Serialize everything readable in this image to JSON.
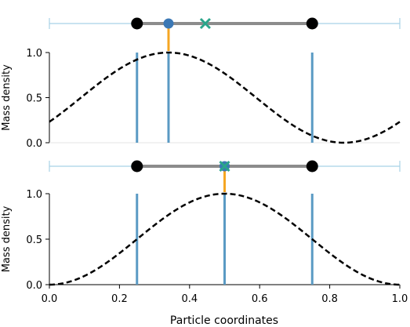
{
  "chart_data": [
    {
      "type": "line",
      "panel": "top",
      "xlim": [
        0.0,
        1.0
      ],
      "ylim": [
        0.0,
        1.0
      ],
      "ylabel": "Mass density",
      "yticks": [
        "0.0",
        "0.5",
        "1.0"
      ],
      "show_xticks": false,
      "curve": {
        "kind": "shifted-cosine",
        "center": 0.34,
        "period": 1.0,
        "style": "dashed",
        "color": "#000000"
      },
      "vertical_lines": [
        0.25,
        0.34,
        0.75
      ],
      "vline_color": "#5a9ac4",
      "strip": {
        "range": [
          0.0,
          1.0
        ],
        "segment": [
          0.25,
          0.75
        ],
        "endpoints": [
          0.25,
          0.75
        ],
        "orange_marker": 0.34,
        "blue_marker": 0.34,
        "green_marker": 0.445
      }
    },
    {
      "type": "line",
      "panel": "bottom",
      "xlim": [
        0.0,
        1.0
      ],
      "ylim": [
        0.0,
        1.0
      ],
      "ylabel": "Mass density",
      "xlabel": "Particle coordinates",
      "xticks": [
        "0.0",
        "0.2",
        "0.4",
        "0.6",
        "0.8",
        "1.0"
      ],
      "yticks": [
        "0.0",
        "0.5",
        "1.0"
      ],
      "curve": {
        "kind": "shifted-cosine",
        "center": 0.5,
        "period": 1.0,
        "style": "dashed",
        "color": "#000000"
      },
      "vertical_lines": [
        0.25,
        0.5,
        0.75
      ],
      "vline_color": "#5a9ac4",
      "strip": {
        "range": [
          0.0,
          1.0
        ],
        "segment": [
          0.25,
          0.75
        ],
        "endpoints": [
          0.25,
          0.75
        ],
        "orange_marker": 0.5,
        "blue_marker": 0.5,
        "green_marker": 0.5
      }
    }
  ],
  "colors": {
    "orange": "#f5a623",
    "blue": "#3b78b5",
    "green": "#2aa58a",
    "gray": "#8c8c8c",
    "strip_line": "#a8d2e6"
  }
}
